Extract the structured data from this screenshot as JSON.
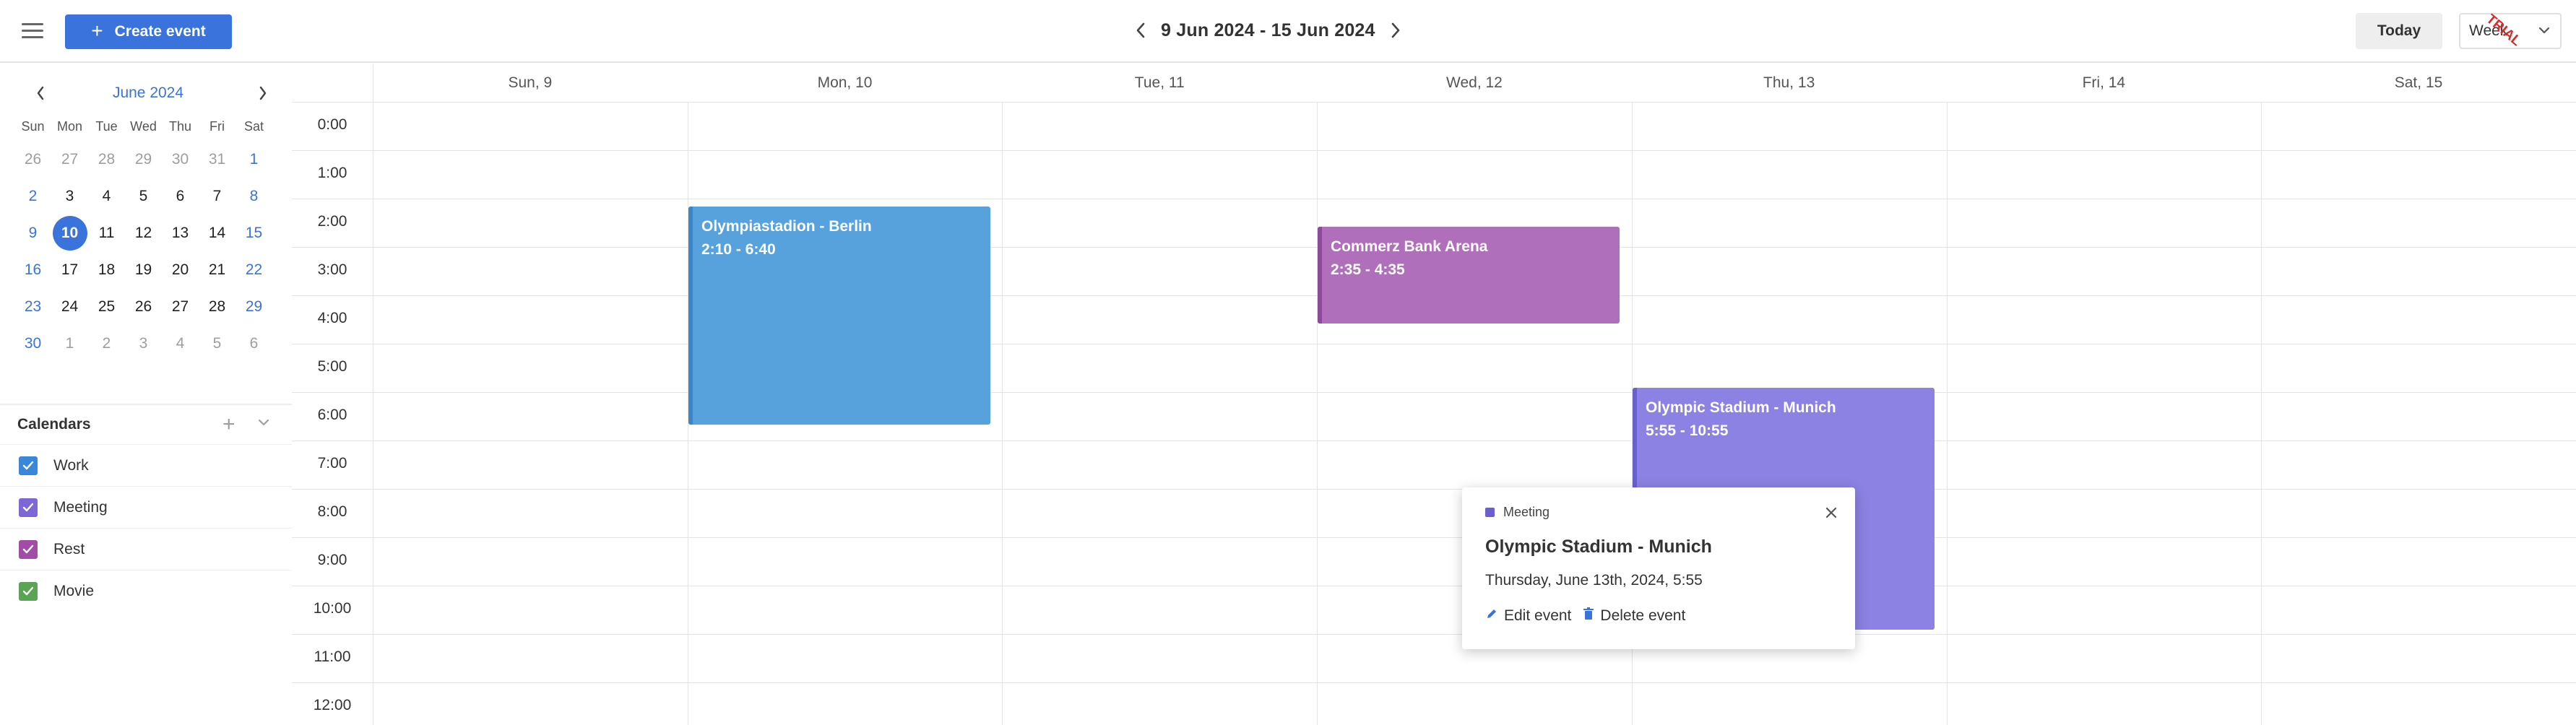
{
  "toolbar": {
    "create_label": "Create event",
    "range_title": "9 Jun 2024 - 15 Jun 2024",
    "today_label": "Today",
    "view_value": "Week",
    "trial_badge": "TRIAL"
  },
  "mini_calendar": {
    "title": "June 2024",
    "weekdays": [
      "Sun",
      "Mon",
      "Tue",
      "Wed",
      "Thu",
      "Fri",
      "Sat"
    ],
    "weeks": [
      [
        "26",
        "27",
        "28",
        "29",
        "30",
        "31",
        "1"
      ],
      [
        "2",
        "3",
        "4",
        "5",
        "6",
        "7",
        "8"
      ],
      [
        "9",
        "10",
        "11",
        "12",
        "13",
        "14",
        "15"
      ],
      [
        "16",
        "17",
        "18",
        "19",
        "20",
        "21",
        "22"
      ],
      [
        "23",
        "24",
        "25",
        "26",
        "27",
        "28",
        "29"
      ],
      [
        "30",
        "1",
        "2",
        "3",
        "4",
        "5",
        "6"
      ]
    ],
    "selected_day": "10"
  },
  "calendars": {
    "heading": "Calendars",
    "items": [
      {
        "label": "Work",
        "color": "#3a86d9"
      },
      {
        "label": "Meeting",
        "color": "#7d66d6"
      },
      {
        "label": "Rest",
        "color": "#a24ca8"
      },
      {
        "label": "Movie",
        "color": "#5aa454"
      }
    ]
  },
  "week": {
    "days": [
      "Sun, 9",
      "Mon, 10",
      "Tue, 11",
      "Wed, 12",
      "Thu, 13",
      "Fri, 14",
      "Sat, 15"
    ],
    "hours": [
      "0:00",
      "1:00",
      "2:00",
      "3:00",
      "4:00",
      "5:00",
      "6:00",
      "7:00",
      "8:00",
      "9:00",
      "10:00",
      "11:00",
      "12:00"
    ]
  },
  "events": [
    {
      "title": "Olympiastadion - Berlin",
      "time": "2:10 - 6:40",
      "day": "Mon, 10",
      "calendar": "Work",
      "color": "#57a1dd"
    },
    {
      "title": "Commerz Bank Arena",
      "time": "2:35 - 4:35",
      "day": "Wed, 12",
      "calendar": "Rest",
      "color": "#b06fba"
    },
    {
      "title": "Olympic Stadium - Munich",
      "time": "5:55 - 10:55",
      "day": "Thu, 13",
      "calendar": "Meeting",
      "color": "#8c82e3"
    }
  ],
  "popup": {
    "category": "Meeting",
    "title": "Olympic Stadium - Munich",
    "date": "Thursday, June 13th, 2024, 5:55",
    "edit_label": "Edit event",
    "delete_label": "Delete event"
  }
}
